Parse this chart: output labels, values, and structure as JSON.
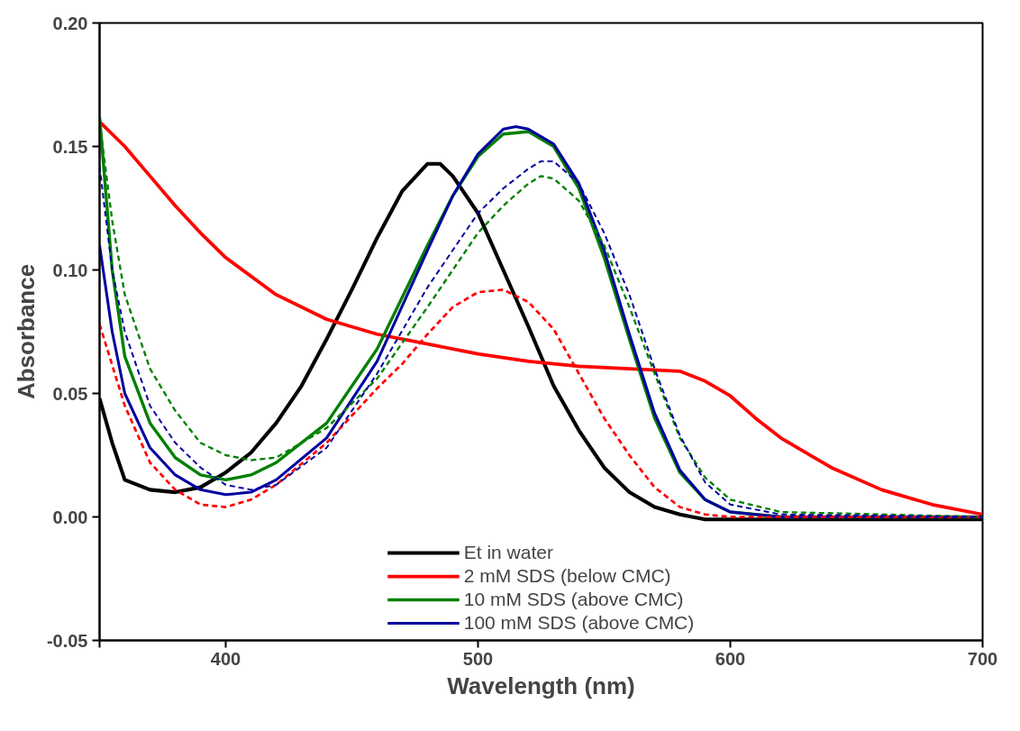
{
  "chart_data": {
    "type": "line",
    "xlabel": "Wavelength (nm)",
    "ylabel": "Absorbance",
    "xlim": [
      350,
      700
    ],
    "ylim": [
      -0.05,
      0.2
    ],
    "xticks": [
      {
        "value": 350,
        "label": null
      },
      400,
      500,
      600,
      700
    ],
    "yticks": [
      {
        "value": -0.05,
        "label": "-0.05"
      },
      {
        "value": 0,
        "label": "0.00"
      },
      {
        "value": 0.05,
        "label": "0.05"
      },
      {
        "value": 0.1,
        "label": "0.10"
      },
      {
        "value": 0.15,
        "label": "0.15"
      },
      {
        "value": 0.2,
        "label": "0.20"
      }
    ],
    "grid": false,
    "legend": "bottom",
    "marker": "none",
    "series": [
      {
        "name": "Et in water",
        "color": "#000000",
        "line_style": "solid",
        "x": [
          350,
          355,
          360,
          370,
          380,
          390,
          400,
          410,
          420,
          430,
          440,
          450,
          460,
          470,
          480,
          485,
          490,
          500,
          510,
          520,
          530,
          540,
          550,
          560,
          570,
          580,
          590,
          600,
          700
        ],
        "values": [
          0.048,
          0.03,
          0.015,
          0.011,
          0.01,
          0.012,
          0.018,
          0.026,
          0.038,
          0.053,
          0.072,
          0.092,
          0.113,
          0.132,
          0.143,
          0.143,
          0.138,
          0.123,
          0.1,
          0.077,
          0.053,
          0.035,
          0.02,
          0.01,
          0.004,
          0.001,
          -0.001,
          -0.001,
          -0.001
        ]
      },
      {
        "name": "2 mM SDS (below CMC)",
        "color": "#ff0000",
        "line_style": "solid",
        "x": [
          350,
          360,
          370,
          380,
          390,
          400,
          420,
          440,
          460,
          480,
          500,
          520,
          540,
          560,
          580,
          590,
          600,
          610,
          620,
          640,
          660,
          680,
          700
        ],
        "values": [
          0.16,
          0.15,
          0.138,
          0.126,
          0.115,
          0.105,
          0.09,
          0.08,
          0.074,
          0.07,
          0.066,
          0.063,
          0.061,
          0.06,
          0.059,
          0.055,
          0.049,
          0.04,
          0.032,
          0.02,
          0.011,
          0.005,
          0.001
        ]
      },
      {
        "name": "10 mM SDS (above CMC)",
        "color": "#008000",
        "line_style": "solid",
        "x": [
          350,
          355,
          360,
          370,
          380,
          390,
          400,
          410,
          420,
          440,
          460,
          480,
          490,
          500,
          510,
          520,
          530,
          540,
          550,
          560,
          570,
          580,
          590,
          600,
          620,
          700
        ],
        "values": [
          0.162,
          0.1,
          0.065,
          0.038,
          0.024,
          0.017,
          0.015,
          0.017,
          0.022,
          0.038,
          0.068,
          0.11,
          0.13,
          0.146,
          0.155,
          0.156,
          0.15,
          0.133,
          0.105,
          0.072,
          0.04,
          0.018,
          0.007,
          0.002,
          0.0,
          0.0
        ]
      },
      {
        "name": "100 mM SDS (above CMC)",
        "color": "#0000a0",
        "line_style": "solid",
        "x": [
          350,
          355,
          360,
          370,
          380,
          390,
          400,
          410,
          420,
          440,
          460,
          480,
          490,
          500,
          510,
          515,
          520,
          530,
          540,
          550,
          560,
          570,
          580,
          590,
          600,
          620,
          700
        ],
        "values": [
          0.11,
          0.075,
          0.05,
          0.028,
          0.017,
          0.011,
          0.009,
          0.01,
          0.015,
          0.032,
          0.063,
          0.108,
          0.13,
          0.147,
          0.157,
          0.158,
          0.157,
          0.151,
          0.135,
          0.108,
          0.074,
          0.042,
          0.019,
          0.007,
          0.002,
          0.0,
          0.0
        ]
      },
      {
        "color": "#ff0000",
        "line_style": "dashed",
        "x": [
          350,
          360,
          370,
          380,
          390,
          400,
          410,
          420,
          440,
          460,
          470,
          480,
          490,
          500,
          510,
          520,
          530,
          540,
          550,
          560,
          570,
          580,
          590,
          600,
          700
        ],
        "values": [
          0.078,
          0.045,
          0.022,
          0.011,
          0.005,
          0.004,
          0.007,
          0.013,
          0.03,
          0.052,
          0.062,
          0.074,
          0.085,
          0.091,
          0.092,
          0.087,
          0.076,
          0.058,
          0.04,
          0.025,
          0.012,
          0.004,
          0.001,
          0.0,
          0.0
        ]
      },
      {
        "color": "#008000",
        "line_style": "dashed",
        "x": [
          350,
          355,
          360,
          370,
          380,
          390,
          400,
          410,
          420,
          440,
          460,
          480,
          500,
          510,
          520,
          525,
          530,
          540,
          550,
          560,
          570,
          580,
          590,
          600,
          620,
          700
        ],
        "values": [
          0.16,
          0.12,
          0.09,
          0.06,
          0.043,
          0.03,
          0.025,
          0.023,
          0.024,
          0.036,
          0.056,
          0.085,
          0.115,
          0.126,
          0.135,
          0.138,
          0.137,
          0.128,
          0.11,
          0.085,
          0.058,
          0.032,
          0.016,
          0.007,
          0.002,
          0.0
        ]
      },
      {
        "color": "#0000a0",
        "line_style": "dashed",
        "x": [
          350,
          355,
          360,
          370,
          380,
          390,
          400,
          410,
          420,
          440,
          460,
          480,
          500,
          510,
          520,
          525,
          530,
          540,
          550,
          560,
          570,
          580,
          590,
          600,
          620,
          700
        ],
        "values": [
          0.142,
          0.1,
          0.075,
          0.045,
          0.03,
          0.02,
          0.013,
          0.011,
          0.013,
          0.028,
          0.058,
          0.093,
          0.123,
          0.133,
          0.141,
          0.144,
          0.144,
          0.135,
          0.115,
          0.09,
          0.06,
          0.033,
          0.014,
          0.005,
          0.001,
          0.0
        ]
      }
    ]
  }
}
